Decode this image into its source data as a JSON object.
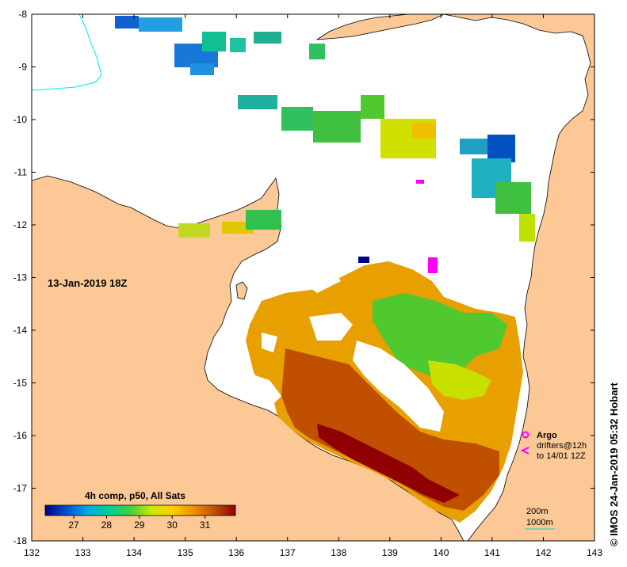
{
  "map": {
    "date_label": "13-Jan-2019 18Z",
    "credit": "© IMOS 24-Jan-2019 05:32 Hobart",
    "x_ticks": [
      "132",
      "133",
      "134",
      "135",
      "136",
      "137",
      "138",
      "139",
      "140",
      "141",
      "142",
      "143"
    ],
    "y_ticks": [
      "-8",
      "-9",
      "-10",
      "-11",
      "-12",
      "-13",
      "-14",
      "-15",
      "-16",
      "-17",
      "-18"
    ],
    "colors": {
      "land": "#fcc896",
      "sea": "#ffffff",
      "coast": "#000000",
      "river": "#00e5ff"
    }
  },
  "colorbar": {
    "title": "4h comp, p50, All Sats",
    "ticks": [
      "27",
      "28",
      "29",
      "30",
      "31"
    ],
    "stops": [
      "#000080",
      "#0050d0",
      "#00a8e8",
      "#00d090",
      "#40d040",
      "#c8e800",
      "#ffd000",
      "#f09000",
      "#c05000",
      "#900000"
    ]
  },
  "legend": {
    "argo_label": "Argo",
    "drifters_label": "drifters@12h",
    "drifters_range": "to 14/01 12Z",
    "argo_color": "#ff00ff",
    "contour_200": "200m",
    "contour_1000": "1000m",
    "contour_color": "#00e0c0"
  }
}
